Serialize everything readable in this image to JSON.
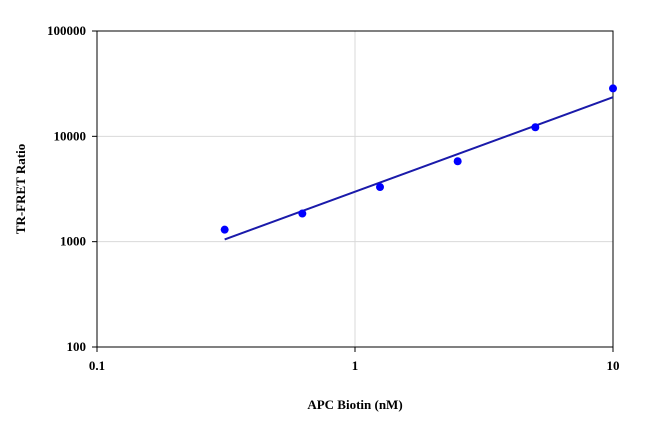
{
  "chart_data": {
    "type": "scatter",
    "title": "",
    "xlabel": "APC Biotin (nM)",
    "ylabel": "TR-FRET Ratio",
    "x_scale": "log",
    "y_scale": "log",
    "xlim": [
      0.1,
      10
    ],
    "ylim": [
      100,
      100000
    ],
    "x_ticks": [
      0.1,
      1,
      10
    ],
    "x_tick_labels": [
      "0.1",
      "1",
      "10"
    ],
    "y_ticks": [
      100,
      1000,
      10000,
      100000
    ],
    "y_tick_labels": [
      "100",
      "1000",
      "10000",
      "100000"
    ],
    "grid": true,
    "legend": "none",
    "series": [
      {
        "x": [
          0.3125,
          0.625,
          1.25,
          2.5,
          5,
          10
        ],
        "y": [
          1300,
          1850,
          3300,
          5800,
          12200,
          28500
        ],
        "color": "#0000ff",
        "marker": "circle"
      }
    ],
    "trendline": {
      "type": "power",
      "x": [
        0.3125,
        10
      ],
      "y": [
        1050,
        23500
      ],
      "color": "#1a1aaa"
    }
  }
}
